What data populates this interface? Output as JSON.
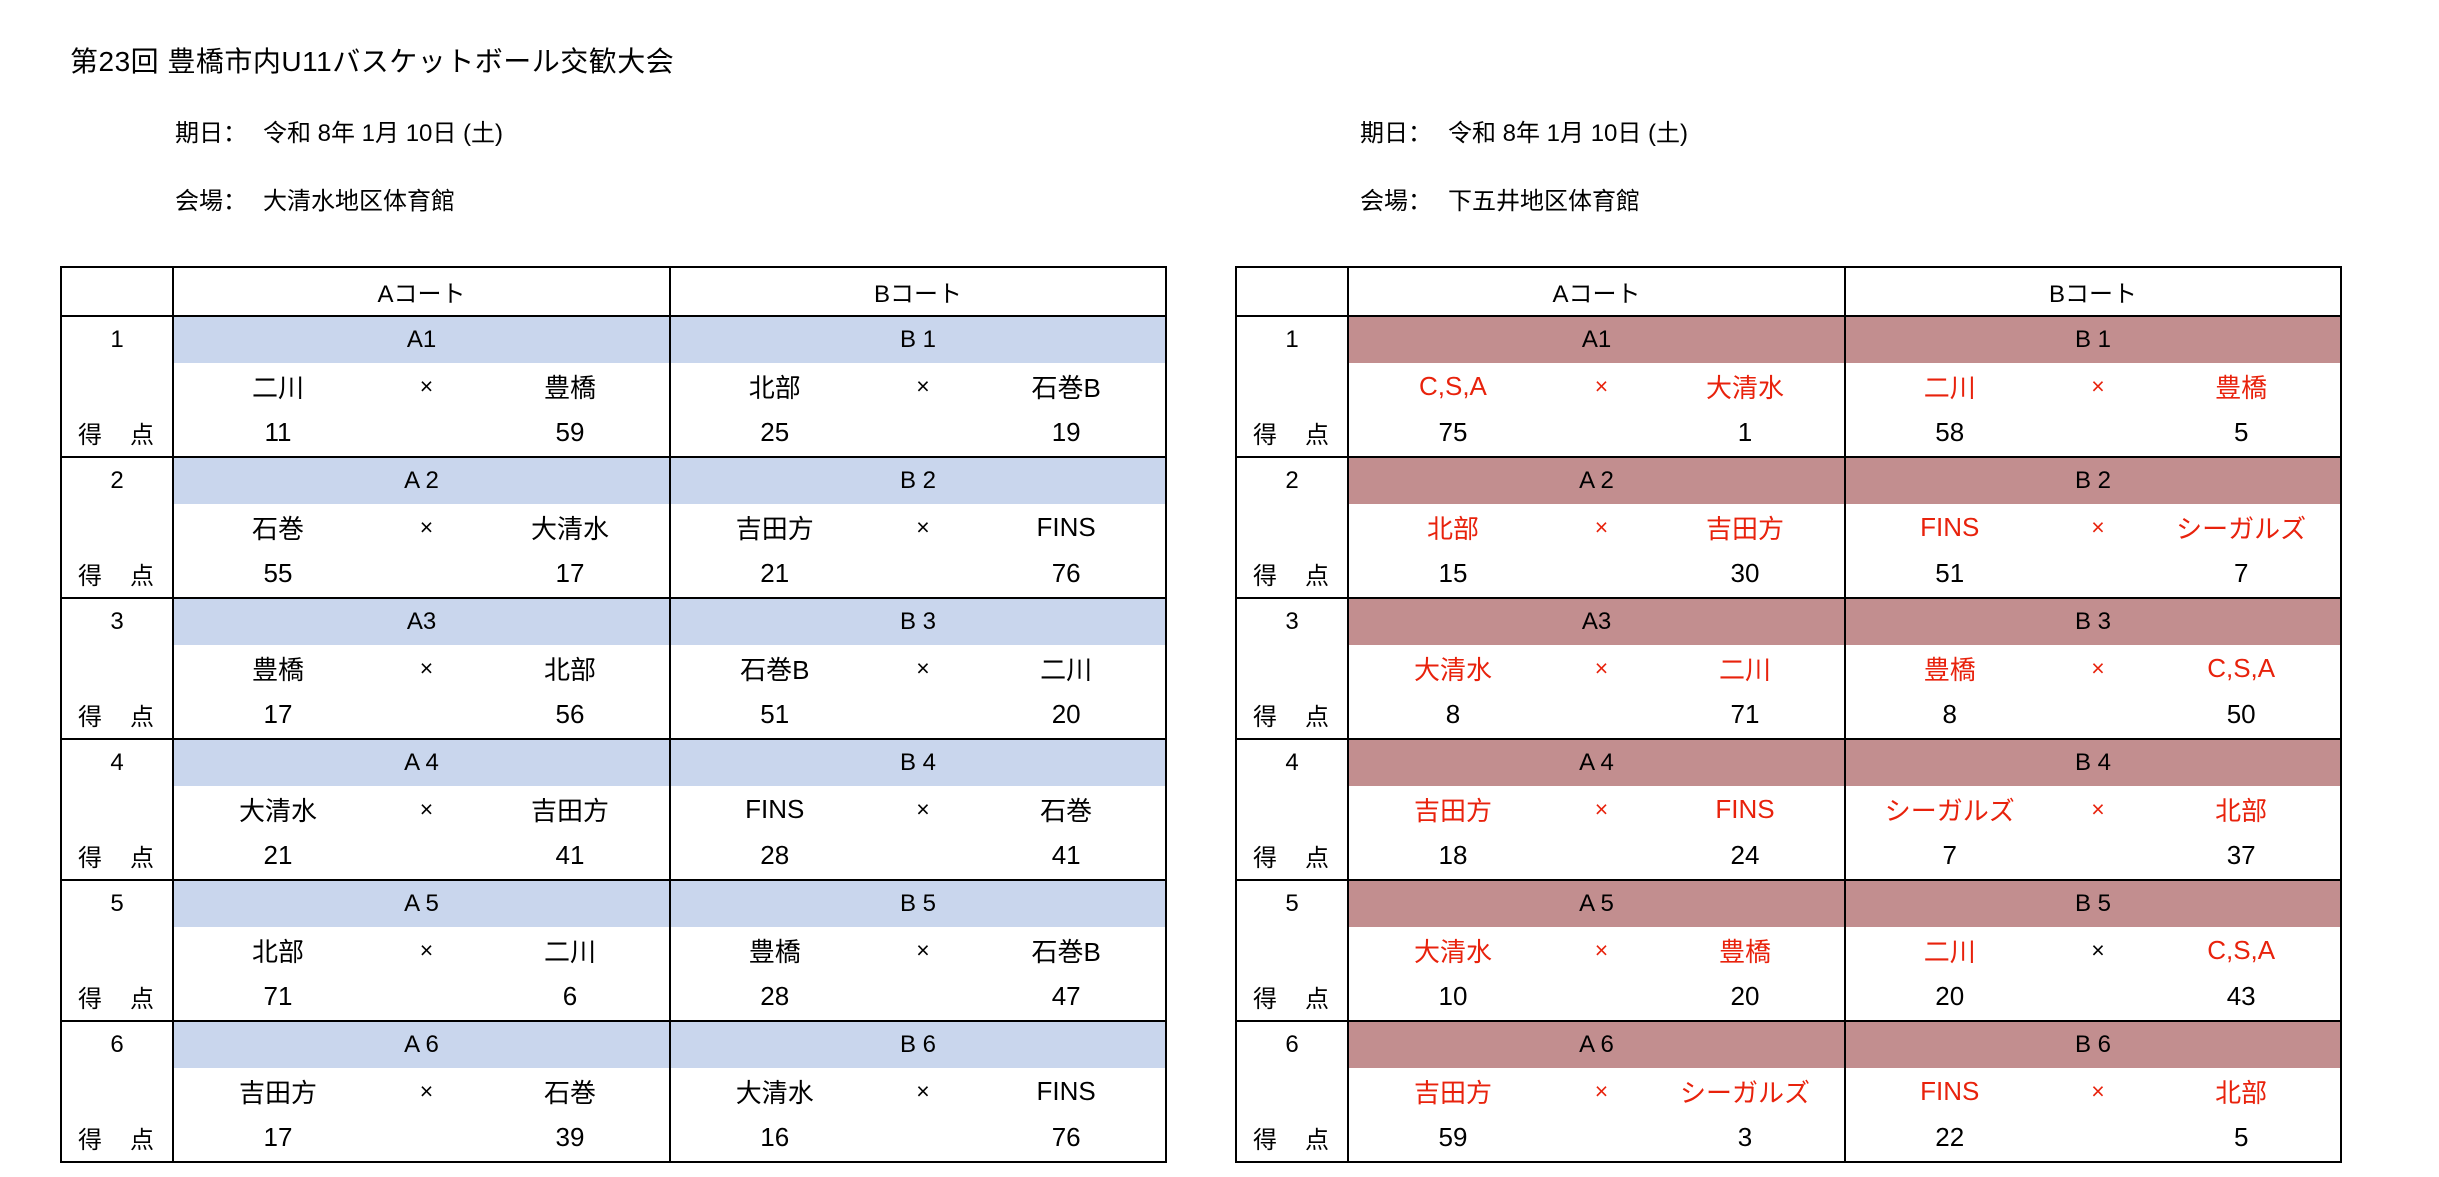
{
  "page": {
    "title": "第23回 豊橋市内U11バスケットボール交歓大会"
  },
  "colors": {
    "background": "#ffffff",
    "border": "#000000",
    "left_banner": "#c9d6ed",
    "right_banner": "#c28e8f",
    "red_text": "#e8220c"
  },
  "labels": {
    "date_label": "期日：",
    "venue_label": "会場：",
    "court_a": "Aコート",
    "court_b": "Bコート",
    "score_label": "得　点",
    "vs": "×"
  },
  "sections": [
    {
      "date": "令和 8年 1月 10日 (土)",
      "venue": "大清水地区体育館",
      "banner_color": "#c9d6ed",
      "team_color": "#000000",
      "rows": [
        {
          "no": "1",
          "a": {
            "id": "A1",
            "home": "二川",
            "away": "豊橋",
            "score_home": "11",
            "score_away": "59",
            "vs_color": "#000000"
          },
          "b": {
            "id": "B 1",
            "home": "北部",
            "away": "石巻B",
            "score_home": "25",
            "score_away": "19",
            "vs_color": "#000000"
          }
        },
        {
          "no": "2",
          "a": {
            "id": "A 2",
            "home": "石巻",
            "away": "大清水",
            "score_home": "55",
            "score_away": "17",
            "vs_color": "#000000"
          },
          "b": {
            "id": "B 2",
            "home": "吉田方",
            "away": "FINS",
            "score_home": "21",
            "score_away": "76",
            "vs_color": "#000000"
          }
        },
        {
          "no": "3",
          "a": {
            "id": "A3",
            "home": "豊橋",
            "away": "北部",
            "score_home": "17",
            "score_away": "56",
            "vs_color": "#000000"
          },
          "b": {
            "id": "B 3",
            "home": "石巻B",
            "away": "二川",
            "score_home": "51",
            "score_away": "20",
            "vs_color": "#000000"
          }
        },
        {
          "no": "4",
          "a": {
            "id": "A 4",
            "home": "大清水",
            "away": "吉田方",
            "score_home": "21",
            "score_away": "41",
            "vs_color": "#000000"
          },
          "b": {
            "id": "B 4",
            "home": "FINS",
            "away": "石巻",
            "score_home": "28",
            "score_away": "41",
            "vs_color": "#000000"
          }
        },
        {
          "no": "5",
          "a": {
            "id": "A 5",
            "home": "北部",
            "away": "二川",
            "score_home": "71",
            "score_away": "6",
            "vs_color": "#000000"
          },
          "b": {
            "id": "B 5",
            "home": "豊橋",
            "away": "石巻B",
            "score_home": "28",
            "score_away": "47",
            "vs_color": "#000000"
          }
        },
        {
          "no": "6",
          "a": {
            "id": "A 6",
            "home": "吉田方",
            "away": "石巻",
            "score_home": "17",
            "score_away": "39",
            "vs_color": "#000000"
          },
          "b": {
            "id": "B 6",
            "home": "大清水",
            "away": "FINS",
            "score_home": "16",
            "score_away": "76",
            "vs_color": "#000000"
          }
        }
      ]
    },
    {
      "date": "令和 8年 1月 10日 (土)",
      "venue": "下五井地区体育館",
      "banner_color": "#c28e8f",
      "team_color": "#e8220c",
      "rows": [
        {
          "no": "1",
          "a": {
            "id": "A1",
            "home": "C,S,A",
            "away": "大清水",
            "score_home": "75",
            "score_away": "1",
            "vs_color": "#e8220c"
          },
          "b": {
            "id": "B 1",
            "home": "二川",
            "away": "豊橋",
            "score_home": "58",
            "score_away": "5",
            "vs_color": "#e8220c"
          }
        },
        {
          "no": "2",
          "a": {
            "id": "A 2",
            "home": "北部",
            "away": "吉田方",
            "score_home": "15",
            "score_away": "30",
            "vs_color": "#e8220c"
          },
          "b": {
            "id": "B 2",
            "home": "FINS",
            "away": "シーガルズ",
            "score_home": "51",
            "score_away": "7",
            "vs_color": "#e8220c"
          }
        },
        {
          "no": "3",
          "a": {
            "id": "A3",
            "home": "大清水",
            "away": "二川",
            "score_home": "8",
            "score_away": "71",
            "vs_color": "#e8220c"
          },
          "b": {
            "id": "B 3",
            "home": "豊橋",
            "away": "C,S,A",
            "score_home": "8",
            "score_away": "50",
            "vs_color": "#e8220c"
          }
        },
        {
          "no": "4",
          "a": {
            "id": "A 4",
            "home": "吉田方",
            "away": "FINS",
            "score_home": "18",
            "score_away": "24",
            "vs_color": "#e8220c"
          },
          "b": {
            "id": "B 4",
            "home": "シーガルズ",
            "away": "北部",
            "score_home": "7",
            "score_away": "37",
            "vs_color": "#e8220c"
          }
        },
        {
          "no": "5",
          "a": {
            "id": "A 5",
            "home": "大清水",
            "away": "豊橋",
            "score_home": "10",
            "score_away": "20",
            "vs_color": "#e8220c"
          },
          "b": {
            "id": "B 5",
            "home": "二川",
            "away": "C,S,A",
            "score_home": "20",
            "score_away": "43",
            "vs_color": "#000000"
          }
        },
        {
          "no": "6",
          "a": {
            "id": "A 6",
            "home": "吉田方",
            "away": "シーガルズ",
            "score_home": "59",
            "score_away": "3",
            "vs_color": "#e8220c"
          },
          "b": {
            "id": "B 6",
            "home": "FINS",
            "away": "北部",
            "score_home": "22",
            "score_away": "5",
            "vs_color": "#e8220c"
          }
        }
      ]
    }
  ]
}
